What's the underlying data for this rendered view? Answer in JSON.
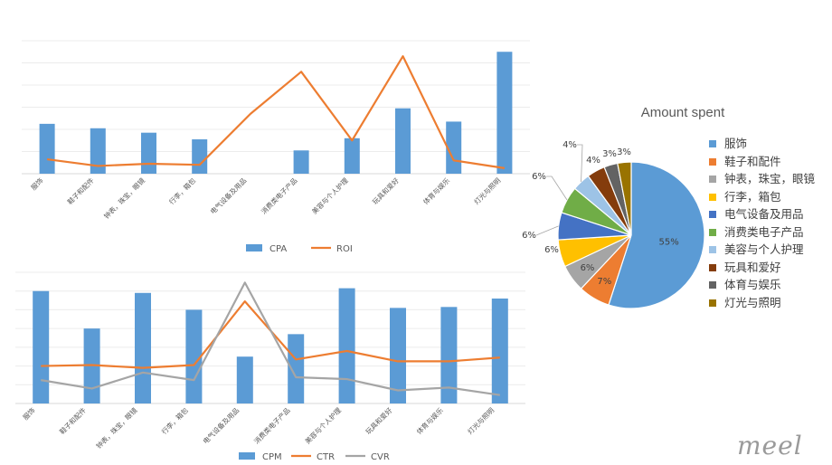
{
  "chart_data": [
    {
      "id": "top",
      "type": "bar+line",
      "categories": [
        "服饰",
        "鞋子和配件",
        "钟表，珠宝，眼镜",
        "行李，箱包",
        "电气设备及用品",
        "消费类电子产品",
        "美容与个人护理",
        "玩具和爱好",
        "体育与娱乐",
        "灯光与照明"
      ],
      "series": [
        {
          "name": "CPA",
          "kind": "bar",
          "color": "#5b9bd5",
          "values": [
            2.25,
            2.05,
            1.85,
            1.55,
            0,
            1.05,
            1.6,
            2.95,
            2.35,
            5.5
          ]
        },
        {
          "name": "ROI",
          "kind": "line",
          "color": "#ed7d31",
          "values": [
            0.65,
            0.35,
            0.45,
            0.4,
            2.7,
            4.6,
            1.5,
            5.3,
            0.6,
            0.25
          ]
        }
      ],
      "ylim": [
        0,
        6
      ],
      "grid": true,
      "legend": "bottom",
      "title": "",
      "xlabel": "",
      "ylabel": ""
    },
    {
      "id": "bottom",
      "type": "bar+line",
      "categories": [
        "服饰",
        "鞋子和配件",
        "钟表，珠宝，眼镜",
        "行李，箱包",
        "电气设备及用品",
        "消费类电子产品",
        "美容与个人护理",
        "玩具和爱好",
        "体育与娱乐",
        "灯光与照明"
      ],
      "series": [
        {
          "name": "CPM",
          "kind": "bar",
          "color": "#5b9bd5",
          "values": [
            6.0,
            4.0,
            5.9,
            5.0,
            2.5,
            3.7,
            6.15,
            5.1,
            5.15,
            5.6
          ]
        },
        {
          "name": "CTR",
          "kind": "line",
          "color": "#ed7d31",
          "values": [
            2.0,
            2.05,
            1.9,
            2.05,
            5.45,
            2.35,
            2.8,
            2.25,
            2.25,
            2.45
          ]
        },
        {
          "name": "CVR",
          "kind": "line",
          "color": "#a5a5a5",
          "values": [
            1.25,
            0.8,
            1.65,
            1.25,
            6.45,
            1.4,
            1.3,
            0.7,
            0.85,
            0.45
          ]
        }
      ],
      "ylim": [
        0,
        7
      ],
      "grid": true,
      "legend": "bottom",
      "title": "",
      "xlabel": "",
      "ylabel": ""
    },
    {
      "id": "pie",
      "type": "pie",
      "title": "Amount spent",
      "categories": [
        "服饰",
        "鞋子和配件",
        "钟表，珠宝，眼镜",
        "行李，箱包",
        "电气设备及用品",
        "消费类电子产品",
        "美容与个人护理",
        "玩具和爱好",
        "体育与娱乐",
        "灯光与照明"
      ],
      "values": [
        55,
        7,
        6,
        6,
        6,
        6,
        4,
        4,
        3,
        3
      ],
      "labels": [
        "55%",
        "7%",
        "6%",
        "6%",
        "6%",
        "6%",
        "4%",
        "4%",
        "3%",
        "3%"
      ],
      "colors": [
        "#5b9bd5",
        "#ed7d31",
        "#a5a5a5",
        "#ffc000",
        "#4472c4",
        "#70ad47",
        "#9dc3e6",
        "#843c0c",
        "#636363",
        "#997300"
      ],
      "legend": "right"
    }
  ],
  "logo_text": "meel"
}
